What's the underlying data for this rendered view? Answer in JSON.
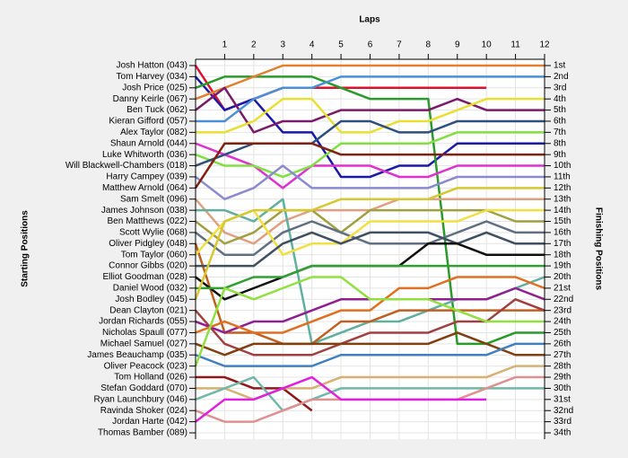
{
  "chart_data": {
    "type": "line",
    "x_label": "Laps",
    "y_label": "Starting Positions",
    "y2_label": "Finishing Positions",
    "x": [
      0,
      1,
      2,
      3,
      4,
      5,
      6,
      7,
      8,
      9,
      10,
      11,
      12
    ],
    "xlim": [
      0,
      12
    ],
    "xticks": [
      1,
      2,
      3,
      4,
      5,
      6,
      7,
      8,
      9,
      10,
      11,
      12
    ],
    "ylim": [
      1,
      34
    ],
    "y_reversed": true,
    "grid": true,
    "yticks": [
      {
        "value": 1,
        "label": "Josh Hatton (043)"
      },
      {
        "value": 2,
        "label": "Tom Harvey (034)"
      },
      {
        "value": 3,
        "label": "Josh Price (025)"
      },
      {
        "value": 4,
        "label": "Danny Keirle (067)"
      },
      {
        "value": 5,
        "label": "Ben Tuck (062)"
      },
      {
        "value": 6,
        "label": "Kieran Gifford (057)"
      },
      {
        "value": 7,
        "label": "Alex Taylor (082)"
      },
      {
        "value": 8,
        "label": "Shaun Arnold (044)"
      },
      {
        "value": 9,
        "label": "Luke Whitworth (036)"
      },
      {
        "value": 10,
        "label": "Will Blackwell-Chambers (018)"
      },
      {
        "value": 11,
        "label": "Harry Campey (039)"
      },
      {
        "value": 12,
        "label": "Matthew Arnold (064)"
      },
      {
        "value": 13,
        "label": "Sam Smelt (096)"
      },
      {
        "value": 14,
        "label": "James Johnson (038)"
      },
      {
        "value": 15,
        "label": "Ben Matthews (022)"
      },
      {
        "value": 16,
        "label": "Scott Wylie (068)"
      },
      {
        "value": 17,
        "label": "Oliver Pidgley (048)"
      },
      {
        "value": 18,
        "label": "Tom Taylor (060)"
      },
      {
        "value": 19,
        "label": "Connor Gibbs (020)"
      },
      {
        "value": 20,
        "label": "Elliot Goodman (028)"
      },
      {
        "value": 21,
        "label": "Daniel Wood (032)"
      },
      {
        "value": 22,
        "label": "Josh Bodley (045)"
      },
      {
        "value": 23,
        "label": "Dean Clayton (021)"
      },
      {
        "value": 24,
        "label": "Jordan Richards (055)"
      },
      {
        "value": 25,
        "label": "Nicholas Spaull (077)"
      },
      {
        "value": 26,
        "label": "Michael Samuel (027)"
      },
      {
        "value": 27,
        "label": "James Beauchamp (035)"
      },
      {
        "value": 28,
        "label": "Oliver Peacock (023)"
      },
      {
        "value": 29,
        "label": "Tom Holland (026)"
      },
      {
        "value": 30,
        "label": "Stefan Goddard (070)"
      },
      {
        "value": 31,
        "label": "Ryan Launchbury (046)"
      },
      {
        "value": 32,
        "label": "Ravinda Shoker (024)"
      },
      {
        "value": 33,
        "label": "Jordan Harte (042)"
      },
      {
        "value": 34,
        "label": "Thomas Bamber (089)"
      }
    ],
    "y2ticks": [
      {
        "value": 1,
        "label": "1st"
      },
      {
        "value": 2,
        "label": "2nd"
      },
      {
        "value": 3,
        "label": "3rd"
      },
      {
        "value": 4,
        "label": "4th"
      },
      {
        "value": 5,
        "label": "5th"
      },
      {
        "value": 6,
        "label": "6th"
      },
      {
        "value": 7,
        "label": "7th"
      },
      {
        "value": 8,
        "label": "8th"
      },
      {
        "value": 9,
        "label": "9th"
      },
      {
        "value": 10,
        "label": "10th"
      },
      {
        "value": 11,
        "label": "11th"
      },
      {
        "value": 12,
        "label": "12th"
      },
      {
        "value": 13,
        "label": "13th"
      },
      {
        "value": 14,
        "label": "14th"
      },
      {
        "value": 15,
        "label": "15th"
      },
      {
        "value": 16,
        "label": "16th"
      },
      {
        "value": 17,
        "label": "17th"
      },
      {
        "value": 18,
        "label": "18th"
      },
      {
        "value": 19,
        "label": "19th"
      },
      {
        "value": 20,
        "label": "20th"
      },
      {
        "value": 21,
        "label": "21st"
      },
      {
        "value": 22,
        "label": "22nd"
      },
      {
        "value": 23,
        "label": "23rd"
      },
      {
        "value": 24,
        "label": "24th"
      },
      {
        "value": 25,
        "label": "25th"
      },
      {
        "value": 26,
        "label": "26th"
      },
      {
        "value": 27,
        "label": "27th"
      },
      {
        "value": 28,
        "label": "28th"
      },
      {
        "value": 29,
        "label": "29th"
      },
      {
        "value": 30,
        "label": "30th"
      },
      {
        "value": 31,
        "label": "31st"
      },
      {
        "value": 32,
        "label": "32nd"
      },
      {
        "value": 33,
        "label": "33rd"
      },
      {
        "value": 34,
        "label": "34th"
      }
    ],
    "series": [
      {
        "color": "#e0102a",
        "values": [
          1,
          5,
          4,
          3,
          3,
          3,
          3,
          3,
          3,
          3,
          3,
          null,
          null
        ]
      },
      {
        "color": "#1a1aa8",
        "values": [
          2,
          5,
          4,
          7,
          7,
          11,
          11,
          10,
          10,
          8,
          8,
          8,
          8
        ]
      },
      {
        "color": "#2a9a2a",
        "values": [
          3,
          2,
          2,
          2,
          2,
          3,
          4,
          4,
          4,
          26,
          26,
          25,
          25
        ]
      },
      {
        "color": "#e08030",
        "values": [
          4,
          3,
          2,
          1,
          1,
          1,
          1,
          1,
          1,
          1,
          1,
          1,
          1
        ]
      },
      {
        "color": "#7a1a6a",
        "values": [
          5,
          3,
          7,
          6,
          6,
          5,
          5,
          5,
          5,
          4,
          5,
          5,
          5
        ]
      },
      {
        "color": "#4a90d8",
        "values": [
          6,
          6,
          4,
          3,
          3,
          2,
          2,
          2,
          2,
          2,
          2,
          2,
          2
        ]
      },
      {
        "color": "#e8e030",
        "values": [
          7,
          7,
          6,
          4,
          4,
          7,
          7,
          6,
          6,
          5,
          4,
          4,
          4
        ]
      },
      {
        "color": "#e030d0",
        "values": [
          8,
          9,
          10,
          12,
          10,
          10,
          10,
          11,
          11,
          10,
          10,
          10,
          10
        ]
      },
      {
        "color": "#80e040",
        "values": [
          9,
          10,
          10,
          11,
          10,
          8,
          8,
          8,
          8,
          7,
          7,
          7,
          7
        ]
      },
      {
        "color": "#2f4f7f",
        "values": [
          10,
          9,
          8,
          8,
          8,
          6,
          6,
          7,
          7,
          6,
          6,
          6,
          6
        ]
      },
      {
        "color": "#8a8ad0",
        "values": [
          11,
          13,
          12,
          10,
          12,
          12,
          12,
          12,
          12,
          11,
          11,
          11,
          11
        ]
      },
      {
        "color": "#802010",
        "values": [
          12,
          8,
          8,
          8,
          8,
          9,
          9,
          9,
          9,
          9,
          9,
          9,
          9
        ]
      },
      {
        "color": "#e0a080",
        "values": [
          13,
          16,
          17,
          15,
          14,
          14,
          14,
          13,
          13,
          13,
          13,
          13,
          13
        ]
      },
      {
        "color": "#60b0a0",
        "values": [
          14,
          14,
          15,
          13,
          26,
          25,
          24,
          24,
          23,
          22,
          22,
          21,
          20
        ]
      },
      {
        "color": "#a0a040",
        "values": [
          15,
          17,
          16,
          14,
          14,
          16,
          14,
          14,
          14,
          14,
          14,
          15,
          15
        ]
      },
      {
        "color": "#607080",
        "values": [
          16,
          18,
          18,
          16,
          15,
          16,
          17,
          17,
          17,
          16,
          15,
          16,
          16
        ]
      },
      {
        "color": "#c06020",
        "values": [
          17,
          25,
          25,
          26,
          26,
          24,
          24,
          23,
          23,
          23,
          23,
          23,
          23
        ]
      },
      {
        "color": "#f0e040",
        "values": [
          18,
          15,
          14,
          18,
          17,
          17,
          15,
          15,
          15,
          15,
          14,
          14,
          14
        ]
      },
      {
        "color": "#405060",
        "values": [
          19,
          19,
          19,
          17,
          16,
          17,
          16,
          16,
          16,
          17,
          16,
          17,
          17
        ]
      },
      {
        "color": "#101010",
        "values": [
          20,
          22,
          21,
          20,
          19,
          19,
          19,
          19,
          17,
          17,
          18,
          18,
          18
        ]
      },
      {
        "color": "#30a030",
        "values": [
          21,
          21,
          20,
          20,
          19,
          19,
          19,
          19,
          19,
          19,
          19,
          19,
          19
        ]
      },
      {
        "color": "#d8c830",
        "values": [
          22,
          15,
          14,
          14,
          14,
          13,
          13,
          13,
          13,
          12,
          12,
          12,
          12
        ]
      },
      {
        "color": "#a04040",
        "values": [
          23,
          26,
          27,
          27,
          27,
          26,
          25,
          25,
          25,
          24,
          24,
          22,
          23
        ]
      },
      {
        "color": "#902090",
        "values": [
          24,
          25,
          24,
          24,
          23,
          22,
          22,
          22,
          22,
          22,
          22,
          21,
          22
        ]
      },
      {
        "color": "#e07020",
        "values": [
          25,
          24,
          25,
          25,
          24,
          23,
          23,
          21,
          21,
          20,
          20,
          20,
          21
        ]
      },
      {
        "color": "#804010",
        "values": [
          26,
          27,
          26,
          26,
          26,
          26,
          26,
          26,
          26,
          25,
          26,
          27,
          27
        ]
      },
      {
        "color": "#4080c0",
        "values": [
          27,
          28,
          28,
          28,
          28,
          27,
          27,
          27,
          27,
          27,
          27,
          26,
          26
        ]
      },
      {
        "color": "#90e040",
        "values": [
          28,
          21,
          22,
          21,
          20,
          20,
          22,
          22,
          22,
          23,
          24,
          24,
          24
        ]
      },
      {
        "color": "#901818",
        "values": [
          29,
          29,
          30,
          30,
          32,
          null,
          null,
          null,
          null,
          null,
          null,
          null,
          null
        ]
      },
      {
        "color": "#d8b070",
        "values": [
          30,
          30,
          31,
          30,
          30,
          29,
          29,
          29,
          29,
          29,
          29,
          28,
          28
        ]
      },
      {
        "color": "#70b8a8",
        "values": [
          31,
          30,
          29,
          32,
          31,
          30,
          30,
          30,
          30,
          30,
          30,
          30,
          30
        ]
      },
      {
        "color": "#e09090",
        "values": [
          32,
          33,
          33,
          32,
          31,
          31,
          31,
          31,
          31,
          31,
          30,
          29,
          29
        ]
      },
      {
        "color": "#e020e0",
        "values": [
          33,
          31,
          31,
          30,
          29,
          31,
          31,
          31,
          31,
          31,
          31,
          null,
          null
        ]
      },
      {
        "color": "#909090",
        "values": [
          34,
          null,
          null,
          null,
          null,
          null,
          null,
          null,
          null,
          null,
          null,
          null,
          null
        ]
      }
    ]
  }
}
